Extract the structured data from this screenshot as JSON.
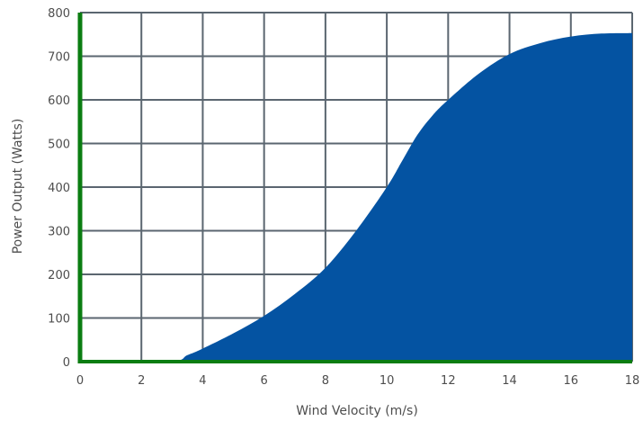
{
  "colors": {
    "fill": "#0453a2",
    "grid": "#5b6670",
    "axis": "#0b7d12"
  },
  "chart_data": {
    "type": "area",
    "xlabel": "Wind Velocity (m/s)",
    "ylabel": "Power Output (Watts)",
    "xlim": [
      0,
      18
    ],
    "ylim": [
      0,
      800
    ],
    "xticks": [
      0,
      2,
      4,
      6,
      8,
      10,
      12,
      14,
      16,
      18
    ],
    "yticks": [
      0,
      100,
      200,
      300,
      400,
      500,
      600,
      700,
      800
    ],
    "grid": true,
    "x": [
      0,
      2.9,
      3.5,
      4,
      5,
      6,
      7,
      8,
      9,
      10,
      10.5,
      11,
      11.5,
      12,
      13,
      14,
      15,
      16,
      17,
      18
    ],
    "y": [
      0,
      0,
      15,
      30,
      65,
      105,
      155,
      215,
      300,
      400,
      460,
      520,
      565,
      600,
      660,
      705,
      730,
      745,
      752,
      753
    ]
  }
}
